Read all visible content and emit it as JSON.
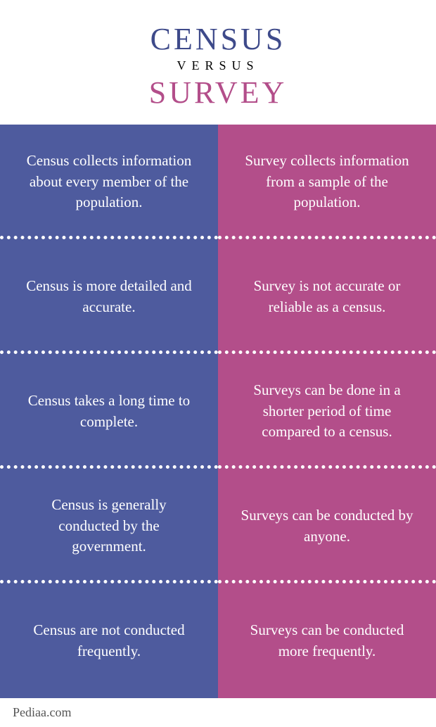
{
  "header": {
    "title_left": "CENSUS",
    "versus": "VERSUS",
    "title_right": "SURVEY"
  },
  "colors": {
    "census": "#4e5b9e",
    "survey": "#b34e8a",
    "census_text": "#3e4a8a",
    "survey_text": "#b34e8a"
  },
  "rows": [
    {
      "left": "Census collects information about every member of the population.",
      "right": "Survey collects information from a sample of the population."
    },
    {
      "left": "Census is more detailed and accurate.",
      "right": "Survey is not accurate or reliable as a census."
    },
    {
      "left": "Census takes a long time to complete.",
      "right": "Surveys can be done in a shorter period of time compared to a census."
    },
    {
      "left": "Census is generally conducted by the government.",
      "right": "Surveys can be conducted by anyone."
    },
    {
      "left": "Census are not conducted frequently.",
      "right": "Surveys can be conducted more frequently."
    }
  ],
  "footer": {
    "source": "Pediaa.com"
  }
}
